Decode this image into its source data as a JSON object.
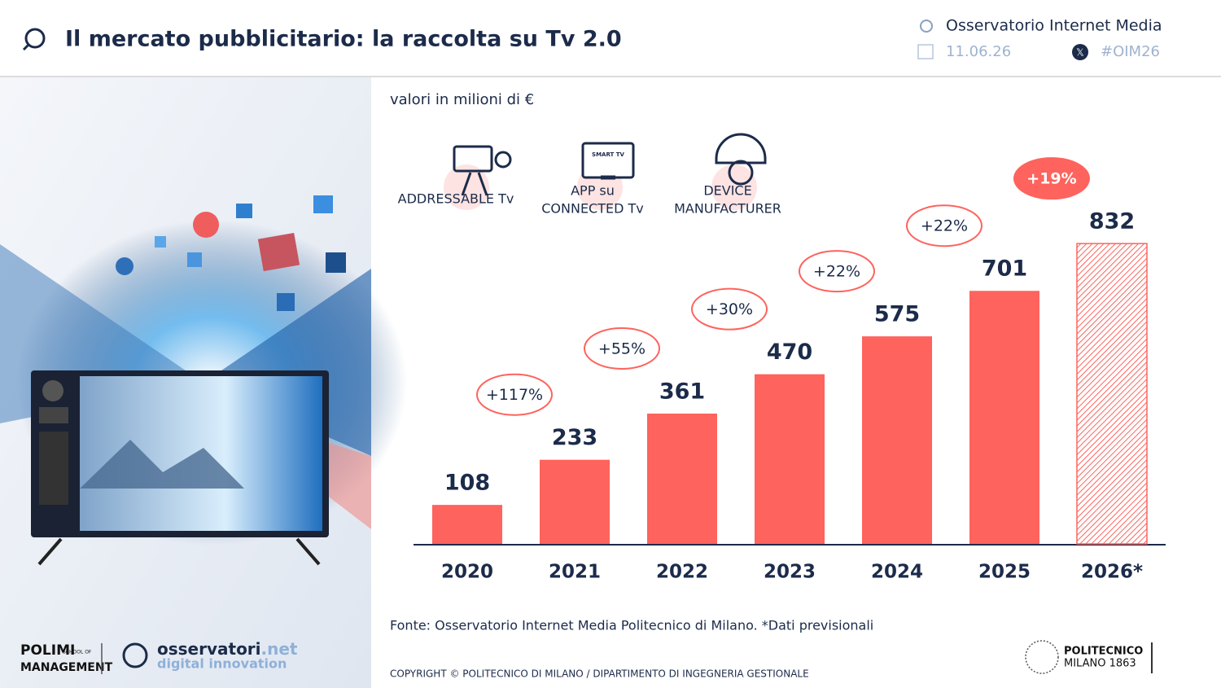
{
  "header": {
    "title": "Il mercato pubblicitario: la raccolta su Tv 2.0",
    "observatory": "Osservatorio Internet Media",
    "date": "11.06.26",
    "hashtag": "#OIM26"
  },
  "chart_data": {
    "type": "bar",
    "subtitle": "valori in milioni di €",
    "categories": [
      "2020",
      "2021",
      "2022",
      "2023",
      "2024",
      "2025",
      "2026*"
    ],
    "values": [
      108,
      233,
      361,
      470,
      575,
      701,
      832
    ],
    "color": "#fe635d",
    "hatched": [
      false,
      false,
      false,
      false,
      false,
      false,
      true
    ],
    "growth_labels": [
      "+117%",
      "+55%",
      "+30%",
      "+22%",
      "+22%",
      "+19%"
    ],
    "growth_highlight": [
      false,
      false,
      false,
      false,
      false,
      true
    ],
    "ylim": [
      0,
      900
    ],
    "source": "Fonte: Osservatorio Internet Media Politecnico di Milano. *Dati previsionali"
  },
  "segments": [
    {
      "lines": [
        "ADDRESSABLE Tv"
      ]
    },
    {
      "lines": [
        "APP su",
        "CONNECTED Tv"
      ]
    },
    {
      "lines": [
        "DEVICE",
        "MANUFACTURER"
      ]
    }
  ],
  "footer": {
    "copyright": "COPYRIGHT © POLITECNICO DI MILANO / DIPARTIMENTO DI INGEGNERIA GESTIONALE",
    "polimi": "POLIMI",
    "school": "SCHOOL OF",
    "management": "MANAGEMENT",
    "osservatori": "osservatori",
    "net": ".net",
    "digital": "digital innovation",
    "politecnico": "POLITECNICO",
    "milano": "MILANO 1863"
  }
}
